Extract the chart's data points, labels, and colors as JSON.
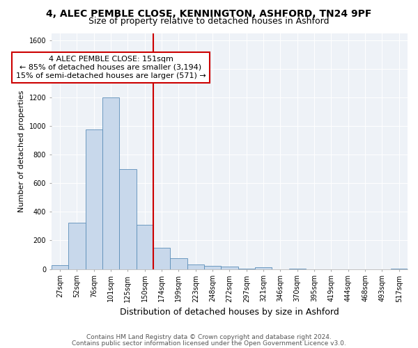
{
  "title1": "4, ALEC PEMBLE CLOSE, KENNINGTON, ASHFORD, TN24 9PF",
  "title2": "Size of property relative to detached houses in Ashford",
  "xlabel": "Distribution of detached houses by size in Ashford",
  "ylabel": "Number of detached properties",
  "categories": [
    "27sqm",
    "52sqm",
    "76sqm",
    "101sqm",
    "125sqm",
    "150sqm",
    "174sqm",
    "199sqm",
    "223sqm",
    "248sqm",
    "272sqm",
    "297sqm",
    "321sqm",
    "346sqm",
    "370sqm",
    "395sqm",
    "419sqm",
    "444sqm",
    "468sqm",
    "493sqm",
    "517sqm"
  ],
  "values": [
    25,
    325,
    975,
    1200,
    700,
    310,
    150,
    75,
    30,
    20,
    15,
    5,
    10,
    0,
    5,
    0,
    0,
    0,
    0,
    0,
    5
  ],
  "bar_color": "#c8d8eb",
  "bar_edge_color": "#5b8db8",
  "highlight_bar_index": 5,
  "highlight_color": "#cc0000",
  "annotation_line1": "4 ALEC PEMBLE CLOSE: 151sqm",
  "annotation_line2": "← 85% of detached houses are smaller (3,194)",
  "annotation_line3": "15% of semi-detached houses are larger (571) →",
  "annotation_box_color": "#ffffff",
  "annotation_box_edge": "#cc0000",
  "ylim": [
    0,
    1650
  ],
  "yticks": [
    0,
    200,
    400,
    600,
    800,
    1000,
    1200,
    1400,
    1600
  ],
  "background_color": "#eef2f7",
  "footer1": "Contains HM Land Registry data © Crown copyright and database right 2024.",
  "footer2": "Contains public sector information licensed under the Open Government Licence v3.0.",
  "title1_fontsize": 10,
  "title2_fontsize": 9,
  "xlabel_fontsize": 9,
  "ylabel_fontsize": 8,
  "tick_fontsize": 7,
  "annot_fontsize": 8,
  "footer_fontsize": 6.5
}
